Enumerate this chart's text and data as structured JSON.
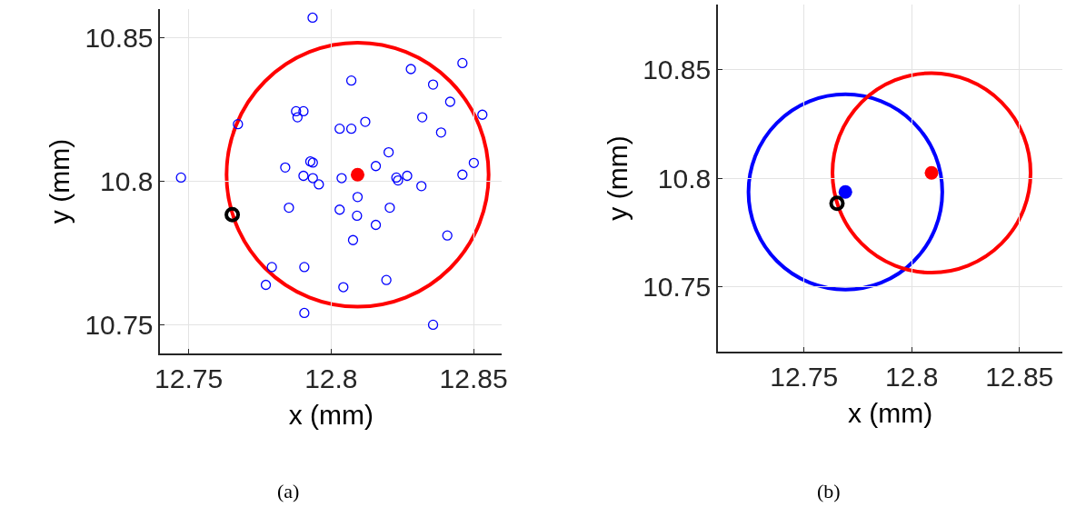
{
  "chart_data": [
    {
      "type": "scatter",
      "xlabel": "x (mm)",
      "ylabel": "y (mm)",
      "xlim": [
        12.74,
        12.86
      ],
      "ylim": [
        10.74,
        10.86
      ],
      "xticks": [
        12.75,
        12.8,
        12.85
      ],
      "yticks": [
        10.75,
        10.8,
        10.85
      ],
      "grid": true,
      "annotations": [
        "(a)"
      ],
      "series": [
        {
          "type": "scatter",
          "marker": "circle",
          "color": "#0000ff",
          "x": [
            12.7935,
            12.8071,
            12.828,
            12.8461,
            12.8358,
            12.8418,
            12.8531,
            12.832,
            12.8386,
            12.7877,
            12.7903,
            12.7882,
            12.7673,
            12.803,
            12.8071,
            12.812,
            12.8202,
            12.7927,
            12.7936,
            12.7839,
            12.8157,
            12.8501,
            12.7473,
            12.7903,
            12.7936,
            12.7957,
            12.8037,
            12.8229,
            12.8235,
            12.8267,
            12.8461,
            12.8317,
            12.8093,
            12.7852,
            12.803,
            12.8091,
            12.8206,
            12.8157,
            12.8077,
            12.8408,
            12.7792,
            12.7906,
            12.7771,
            12.8043,
            12.8194,
            12.7906,
            12.8358
          ],
          "values": [
            10.857,
            10.8351,
            10.8391,
            10.8412,
            10.8337,
            10.8277,
            10.8232,
            10.8223,
            10.817,
            10.8244,
            10.8244,
            10.8223,
            10.8199,
            10.8183,
            10.8183,
            10.8207,
            10.8101,
            10.8069,
            10.8065,
            10.8048,
            10.8053,
            10.8064,
            10.8013,
            10.8019,
            10.8011,
            10.7989,
            10.8011,
            10.8013,
            10.8003,
            10.8019,
            10.8023,
            10.7983,
            10.7945,
            10.7908,
            10.7901,
            10.788,
            10.7908,
            10.7848,
            10.7795,
            10.7811,
            10.7701,
            10.7701,
            10.7639,
            10.7631,
            10.7656,
            10.7541,
            10.75
          ]
        },
        {
          "type": "scatter",
          "color": "#ff0000",
          "x": [
            12.8093
          ],
          "values": [
            10.8023
          ]
        },
        {
          "type": "scatter",
          "marker": "circle",
          "color": "#000000",
          "x": [
            12.7653
          ],
          "values": [
            10.7884
          ]
        }
      ]
    },
    {
      "type": "scatter",
      "xlabel": "x (mm)",
      "ylabel": "y (mm)",
      "xlim": [
        12.71,
        12.87
      ],
      "ylim": [
        10.72,
        10.88
      ],
      "xticks": [
        12.75,
        12.8,
        12.85
      ],
      "yticks": [
        10.75,
        10.8,
        10.85
      ],
      "grid": true,
      "annotations": [
        "(b)"
      ],
      "series": [
        {
          "type": "scatter",
          "color": "#0000ff",
          "x": [
            12.7692
          ],
          "values": [
            10.7936
          ]
        },
        {
          "type": "scatter",
          "color": "#ff0000",
          "x": [
            12.8092
          ],
          "values": [
            10.8024
          ]
        },
        {
          "type": "scatter",
          "marker": "circle",
          "color": "#000000",
          "x": [
            12.7653
          ],
          "values": [
            10.7884
          ]
        }
      ]
    }
  ]
}
